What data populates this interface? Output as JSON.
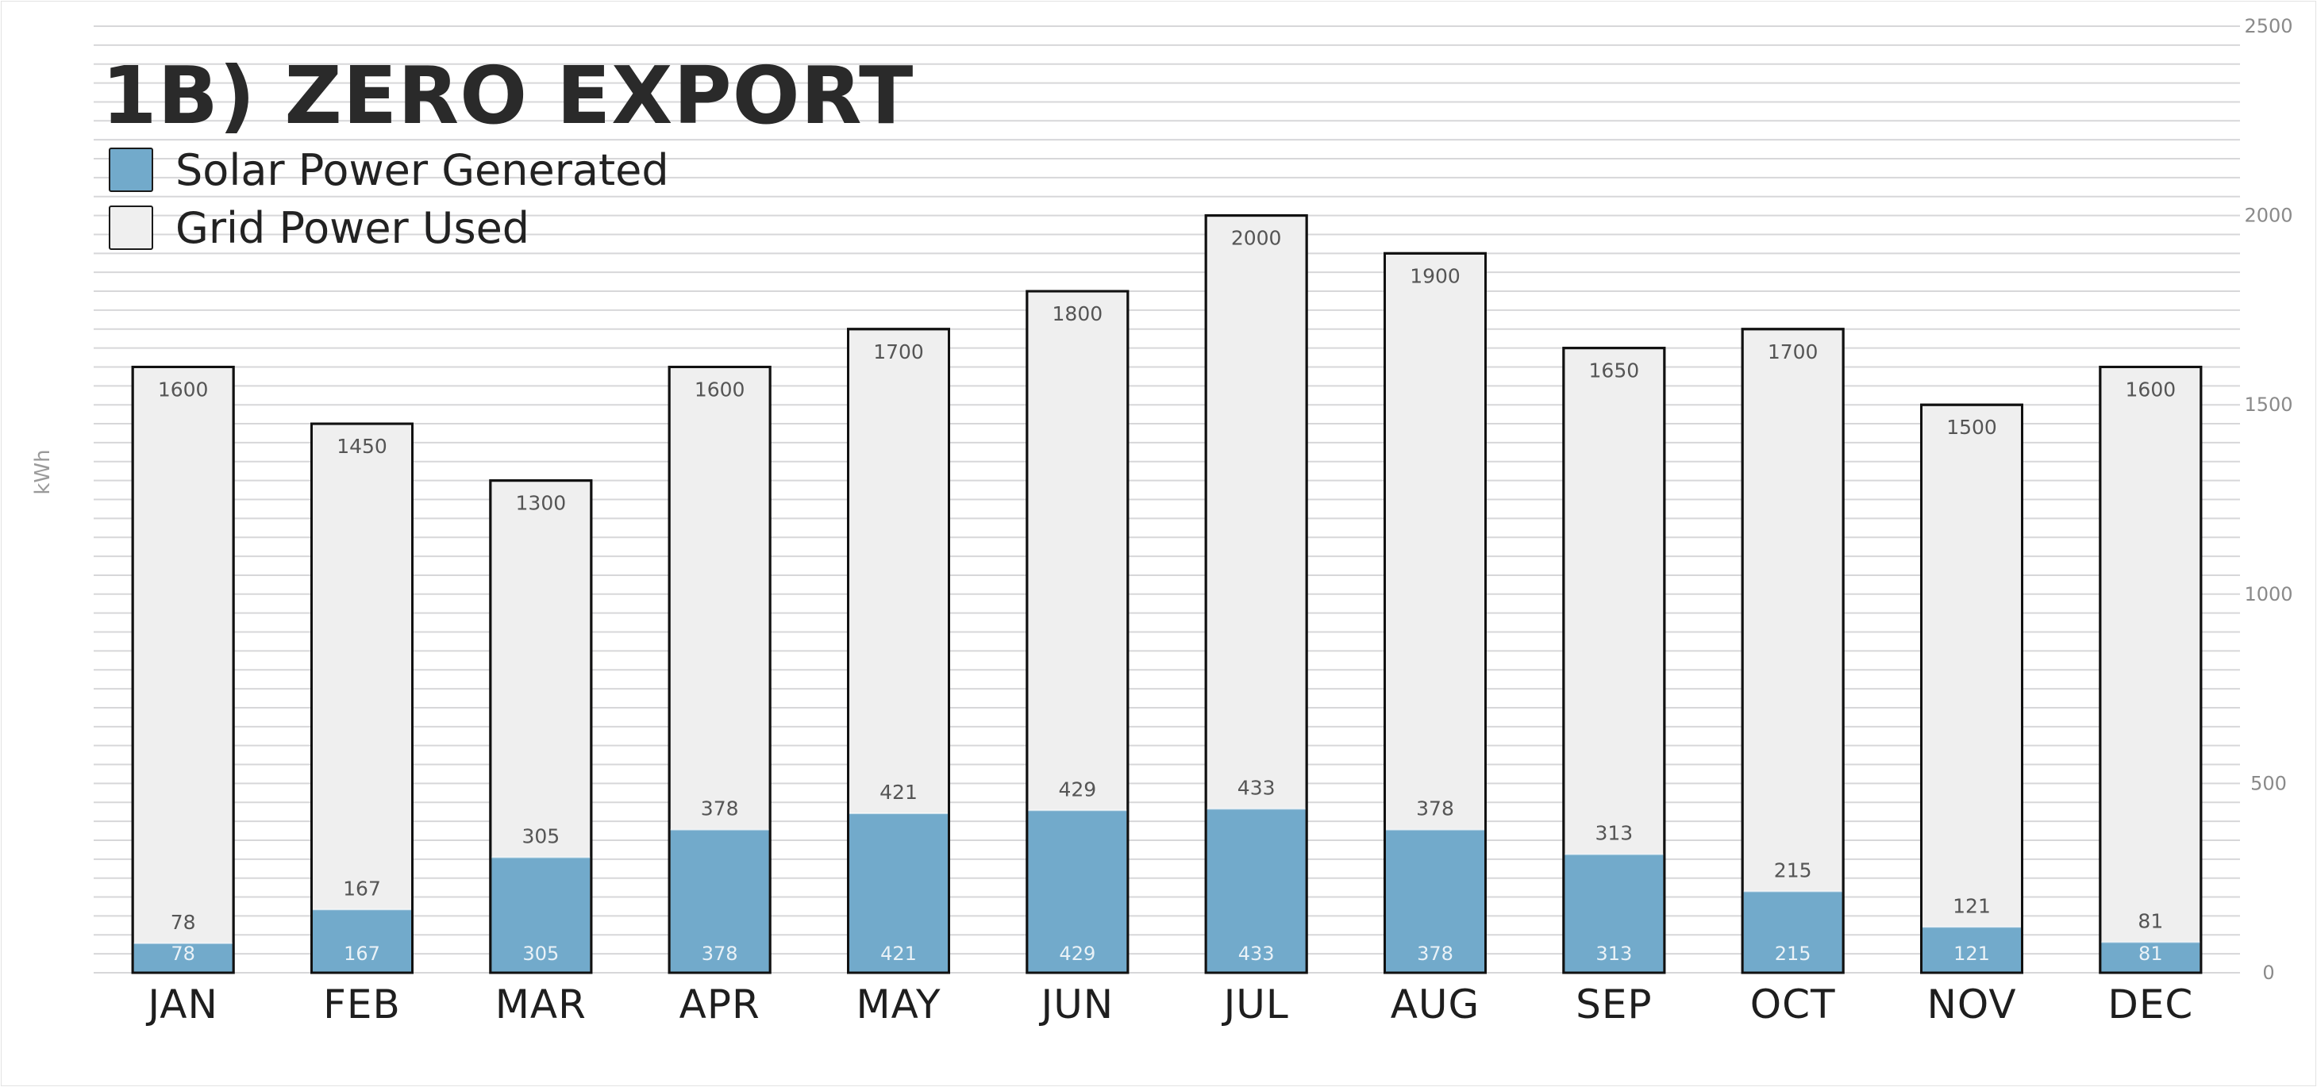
{
  "chart_data": {
    "type": "bar",
    "stacked": false,
    "overlay": true,
    "title": "1B) ZERO EXPORT",
    "ylabel": "kWh",
    "ylim": [
      0,
      2500
    ],
    "yticks": [
      0,
      500,
      1000,
      1500,
      2000,
      2500
    ],
    "y_axis_side": "right",
    "grid": true,
    "legend_position": "top-left",
    "categories": [
      "JAN",
      "FEB",
      "MAR",
      "APR",
      "MAY",
      "JUN",
      "JUL",
      "AUG",
      "SEP",
      "OCT",
      "NOV",
      "DEC"
    ],
    "series": [
      {
        "name": "Grid Power Used",
        "color": "#efefef",
        "values": [
          1600,
          1450,
          1300,
          1600,
          1700,
          1800,
          2000,
          1900,
          1650,
          1700,
          1500,
          1600
        ]
      },
      {
        "name": "Solar Power Generated",
        "color": "#72aacb",
        "values": [
          78,
          167,
          305,
          378,
          421,
          429,
          433,
          378,
          313,
          215,
          121,
          81
        ]
      }
    ]
  }
}
